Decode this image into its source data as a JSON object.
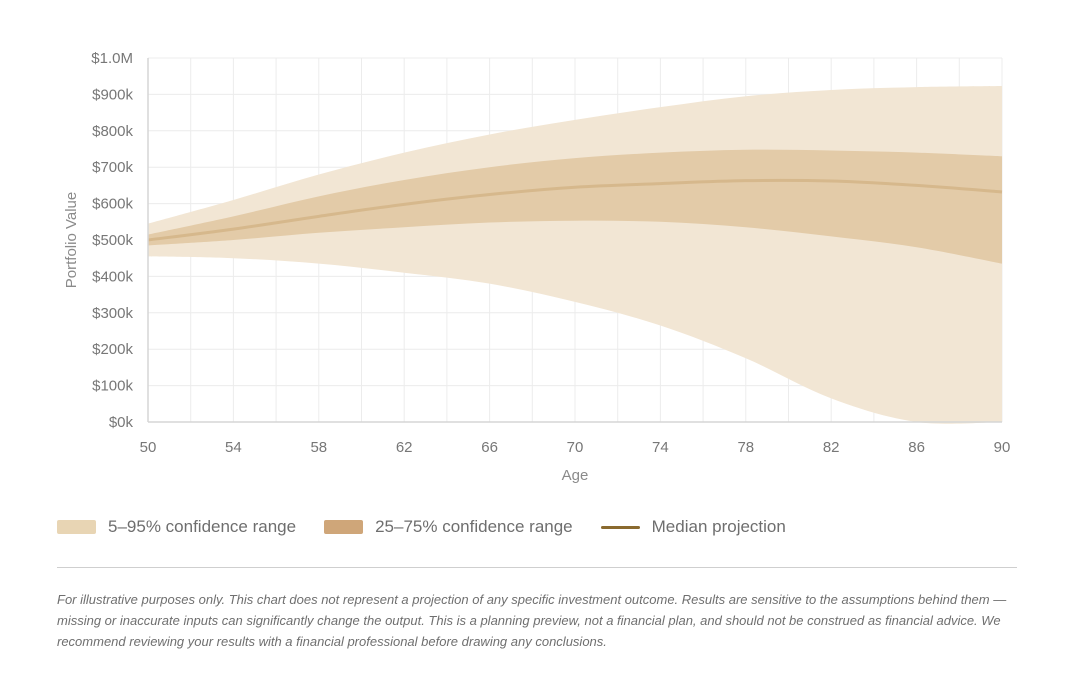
{
  "colors": {
    "outer_band": "#f2e6d4",
    "inner_band": "#e3cba8",
    "median": "#d6b88c",
    "legend_outer": "#e8d5b4",
    "legend_inner": "#cfa679",
    "legend_median": "#8a6a2f",
    "grid": "#ececec",
    "axis": "#d5d5d5"
  },
  "legend": {
    "outer_label": "5–95% confidence range",
    "inner_label": "25–75% confidence range",
    "median_label": "Median projection"
  },
  "disclaimer": "For illustrative purposes only. This chart does not represent a projection of any specific investment outcome. Results are sensitive to the assumptions behind them — missing or inaccurate inputs can significantly change the output. This is a planning preview, not a financial plan, and should not be construed as financial advice. We recommend reviewing your results with a financial professional before drawing any conclusions.",
  "chart_data": {
    "type": "area",
    "xlabel": "Age",
    "ylabel": "Portfolio Value",
    "xlim": [
      50,
      90
    ],
    "ylim": [
      0,
      1000000
    ],
    "x_ticks": [
      50,
      54,
      58,
      62,
      66,
      70,
      74,
      78,
      82,
      86,
      90
    ],
    "x_tick_labels": [
      "50",
      "54",
      "58",
      "62",
      "66",
      "70",
      "74",
      "78",
      "82",
      "86",
      "90"
    ],
    "y_ticks": [
      0,
      100000,
      200000,
      300000,
      400000,
      500000,
      600000,
      700000,
      800000,
      900000,
      1000000
    ],
    "y_tick_labels": [
      "$0k",
      "$100k",
      "$200k",
      "$300k",
      "$400k",
      "$500k",
      "$600k",
      "$700k",
      "$800k",
      "$900k",
      "$1.0M"
    ],
    "grid": true,
    "x": [
      50,
      54,
      58,
      62,
      66,
      70,
      74,
      78,
      82,
      86,
      90
    ],
    "series": [
      {
        "name": "5–95% confidence range",
        "band": "upper",
        "values": [
          545000,
          610000,
          680000,
          740000,
          790000,
          830000,
          865000,
          895000,
          912000,
          920000,
          923000
        ]
      },
      {
        "name": "5–95% confidence range",
        "band": "lower",
        "values": [
          455000,
          450000,
          435000,
          410000,
          380000,
          330000,
          265000,
          175000,
          65000,
          0,
          0
        ]
      },
      {
        "name": "25–75% confidence range",
        "band": "upper",
        "values": [
          515000,
          565000,
          620000,
          665000,
          700000,
          725000,
          740000,
          748000,
          746000,
          740000,
          730000
        ]
      },
      {
        "name": "25–75% confidence range",
        "band": "lower",
        "values": [
          485000,
          500000,
          520000,
          535000,
          548000,
          553000,
          550000,
          535000,
          510000,
          480000,
          435000
        ]
      },
      {
        "name": "Median projection",
        "values": [
          500000,
          530000,
          565000,
          598000,
          625000,
          645000,
          655000,
          663000,
          662000,
          650000,
          632000
        ]
      }
    ]
  }
}
